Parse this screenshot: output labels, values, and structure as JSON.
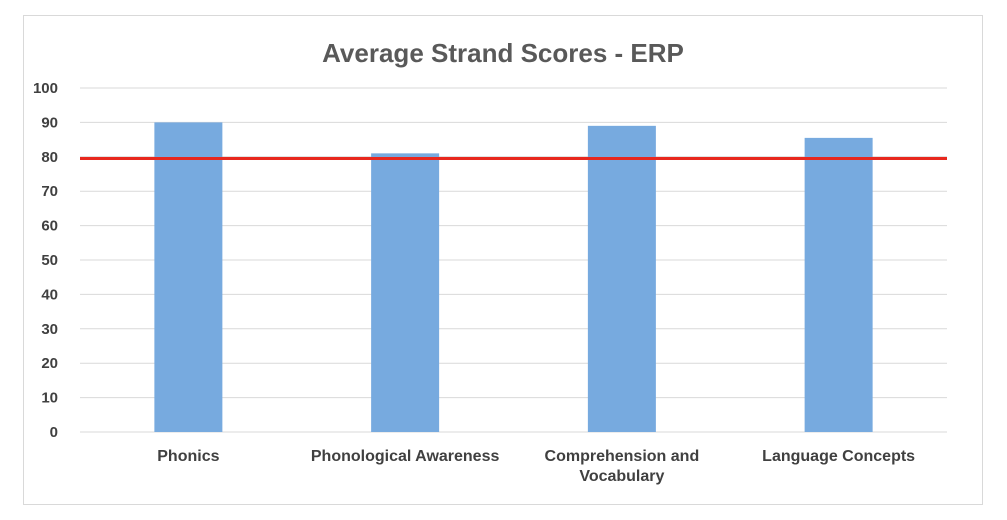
{
  "chart_data": {
    "type": "bar",
    "title": "Average Strand Scores - ERP",
    "categories": [
      "Phonics",
      "Phonological Awareness",
      "Comprehension and Vocabulary",
      "Language Concepts"
    ],
    "category_lines": [
      [
        "Phonics"
      ],
      [
        "Phonological Awareness"
      ],
      [
        "Comprehension and",
        "Vocabulary"
      ],
      [
        "Language Concepts"
      ]
    ],
    "values": [
      90,
      81,
      89,
      85.5
    ],
    "ylim": [
      0,
      100
    ],
    "yticks": [
      "0",
      "10",
      "20",
      "30",
      "40",
      "50",
      "60",
      "70",
      "80",
      "90",
      "100"
    ],
    "reference_line": 79.5,
    "grid": true,
    "legend": "none",
    "colors": {
      "bar": "#77aadf",
      "reference": "#e8281e",
      "grid": "#d9d9d9"
    }
  }
}
